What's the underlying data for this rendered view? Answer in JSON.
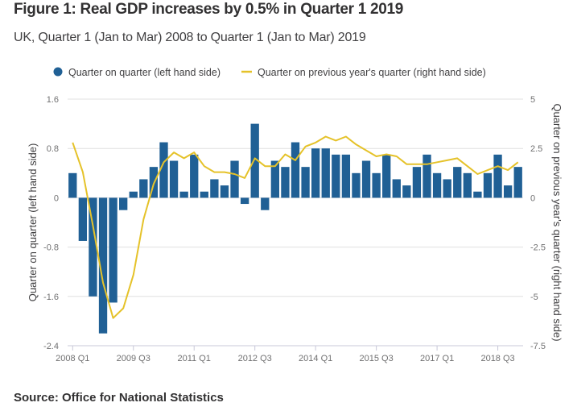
{
  "title": "Figure 1: Real GDP increases by 0.5% in Quarter 1 2019",
  "subtitle": "UK, Quarter 1 (Jan to Mar) 2008 to Quarter 1 (Jan to Mar) 2019",
  "source": "Source: Office for National Statistics",
  "colors": {
    "bar": "#206095",
    "line": "#e5c229",
    "grid": "#e0e0e0",
    "axis_text": "#707071"
  },
  "chart_data": {
    "type": "bar",
    "title": "Figure 1: Real GDP increases by 0.5% in Quarter 1 2019",
    "subtitle": "UK, Quarter 1 (Jan to Mar) 2008 to Quarter 1 (Jan to Mar) 2019",
    "legend_position": "top-center",
    "grid": true,
    "categories": [
      "2008 Q1",
      "2008 Q2",
      "2008 Q3",
      "2008 Q4",
      "2009 Q1",
      "2009 Q2",
      "2009 Q3",
      "2009 Q4",
      "2010 Q1",
      "2010 Q2",
      "2010 Q3",
      "2010 Q4",
      "2011 Q1",
      "2011 Q2",
      "2011 Q3",
      "2011 Q4",
      "2012 Q1",
      "2012 Q2",
      "2012 Q3",
      "2012 Q4",
      "2013 Q1",
      "2013 Q2",
      "2013 Q3",
      "2013 Q4",
      "2014 Q1",
      "2014 Q2",
      "2014 Q3",
      "2014 Q4",
      "2015 Q1",
      "2015 Q2",
      "2015 Q3",
      "2015 Q4",
      "2016 Q1",
      "2016 Q2",
      "2016 Q3",
      "2016 Q4",
      "2017 Q1",
      "2017 Q2",
      "2017 Q3",
      "2017 Q4",
      "2018 Q1",
      "2018 Q2",
      "2018 Q3",
      "2018 Q4",
      "2019 Q1"
    ],
    "x_tick_labels": [
      "2008 Q1",
      "2009 Q3",
      "2011 Q1",
      "2012 Q3",
      "2014 Q1",
      "2015 Q3",
      "2017 Q1",
      "2018 Q3"
    ],
    "series": [
      {
        "name": "Quarter on quarter (left hand side)",
        "type": "bar",
        "axis": "left",
        "values": [
          0.4,
          -0.7,
          -1.6,
          -2.2,
          -1.7,
          -0.2,
          0.1,
          0.3,
          0.5,
          0.9,
          0.6,
          0.1,
          0.7,
          0.1,
          0.3,
          0.2,
          0.6,
          -0.1,
          1.2,
          -0.2,
          0.6,
          0.5,
          0.9,
          0.5,
          0.8,
          0.8,
          0.7,
          0.7,
          0.4,
          0.6,
          0.4,
          0.7,
          0.3,
          0.2,
          0.5,
          0.7,
          0.4,
          0.3,
          0.5,
          0.4,
          0.1,
          0.4,
          0.7,
          0.2,
          0.5
        ]
      },
      {
        "name": "Quarter on previous year's quarter (right hand side)",
        "type": "line",
        "axis": "right",
        "values": [
          2.8,
          1.3,
          -1.4,
          -4.3,
          -6.1,
          -5.6,
          -3.9,
          -1.1,
          0.7,
          1.8,
          2.3,
          2.0,
          2.3,
          1.6,
          1.3,
          1.3,
          1.2,
          1.0,
          2.0,
          1.6,
          1.6,
          2.2,
          1.9,
          2.6,
          2.8,
          3.1,
          2.9,
          3.1,
          2.7,
          2.4,
          2.1,
          2.2,
          2.1,
          1.7,
          1.7,
          1.7,
          1.8,
          1.9,
          2.0,
          1.6,
          1.2,
          1.4,
          1.6,
          1.4,
          1.8
        ]
      }
    ],
    "y_left": {
      "label": "Quarter on quarter (left hand side)",
      "range": [
        -2.4,
        1.6
      ],
      "ticks": [
        1.6,
        0.8,
        0,
        -0.8,
        -1.6,
        -2.4
      ],
      "tick_labels": [
        "1.6",
        "0.8",
        "0",
        "-0.8",
        "-1.6",
        "-2.4"
      ]
    },
    "y_right": {
      "label": "Quarter on previous year's quarter (right hand side)",
      "range": [
        -7.5,
        5
      ],
      "ticks": [
        5,
        2.5,
        0,
        -2.5,
        -5,
        -7.5
      ],
      "tick_labels": [
        "5",
        "2.5",
        "0",
        "-2.5",
        "-5",
        "-7.5"
      ]
    },
    "xlabel": ""
  }
}
